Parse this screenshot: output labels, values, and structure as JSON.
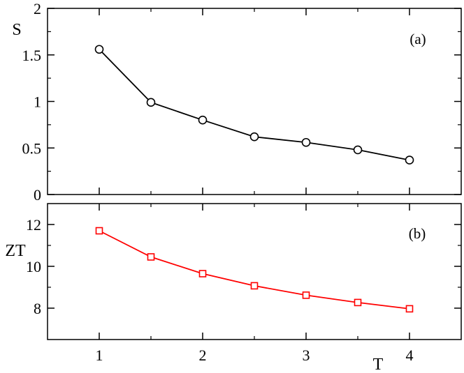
{
  "chart_data": [
    {
      "type": "line",
      "panel_label": "(a)",
      "ylabel": "S",
      "xlabel": "",
      "x": [
        1,
        1.5,
        2,
        2.5,
        3,
        3.5,
        4
      ],
      "series": [
        {
          "values": [
            1.56,
            0.99,
            0.8,
            0.62,
            0.56,
            0.48,
            0.37
          ],
          "color": "#000000",
          "marker": "circle"
        }
      ],
      "xlim": [
        0.5,
        4.5
      ],
      "ylim": [
        0,
        2
      ],
      "yticks": [
        0,
        0.5,
        1,
        1.5,
        2
      ],
      "yticklabels": [
        "0",
        "0.5",
        "1",
        "1.5",
        "2"
      ],
      "xticks": [
        1,
        2,
        3,
        4
      ],
      "grid": false
    },
    {
      "type": "line",
      "panel_label": "(b)",
      "ylabel": "ZT",
      "xlabel": "T",
      "x": [
        1,
        1.5,
        2,
        2.5,
        3,
        3.5,
        4
      ],
      "series": [
        {
          "values": [
            11.7,
            10.45,
            9.65,
            9.07,
            8.62,
            8.27,
            7.97
          ],
          "color": "#ff0000",
          "marker": "square"
        }
      ],
      "xlim": [
        0.5,
        4.5
      ],
      "ylim": [
        6.5,
        13
      ],
      "yticks": [
        8,
        10,
        12
      ],
      "yticklabels": [
        "8",
        "10",
        "12"
      ],
      "xticks": [
        1,
        2,
        3,
        4
      ],
      "xticklabels": [
        "1",
        "2",
        "3",
        "4"
      ],
      "grid": false
    }
  ]
}
